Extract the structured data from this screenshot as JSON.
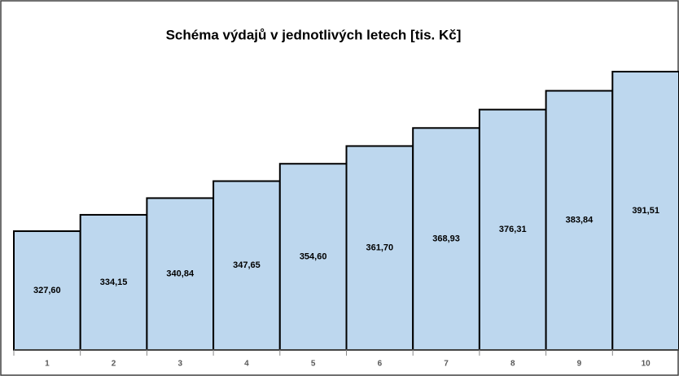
{
  "chart_data": {
    "type": "bar",
    "title": "Schéma výdajů v jednotlivých letech [tis. Kč]",
    "categories": [
      "1",
      "2",
      "3",
      "4",
      "5",
      "6",
      "7",
      "8",
      "9",
      "10"
    ],
    "values": [
      327.6,
      334.15,
      340.84,
      347.65,
      354.6,
      361.7,
      368.93,
      376.31,
      383.84,
      391.51
    ],
    "value_labels": [
      "327,60",
      "334,15",
      "340,84",
      "347,65",
      "354,60",
      "361,70",
      "368,93",
      "376,31",
      "383,84",
      "391,51"
    ],
    "color": "#bdd7ee",
    "ylim": [
      280,
      400
    ]
  }
}
